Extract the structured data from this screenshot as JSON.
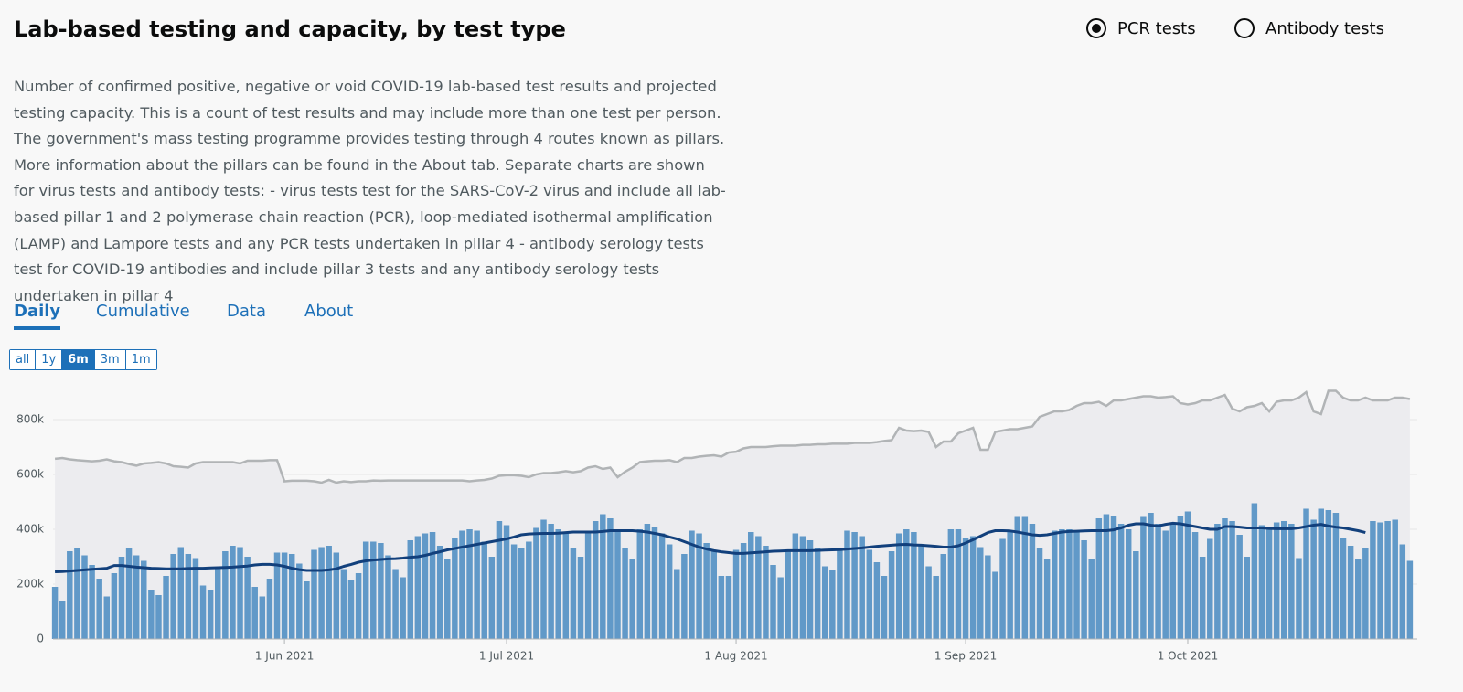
{
  "header": {
    "title": "Lab-based testing and capacity, by test type"
  },
  "toggles": [
    {
      "label": "PCR tests",
      "selected": true
    },
    {
      "label": "Antibody tests",
      "selected": false
    }
  ],
  "description": "Number of confirmed positive, negative or void COVID-19 lab-based test results and projected testing capacity. This is a count of test results and may include more than one test per person. The government's mass testing programme provides testing through 4 routes known as pillars. More information about the pillars can be found in the About tab. Separate charts are shown for virus tests and antibody tests: - virus tests test for the SARS-CoV-2 virus and include all lab-based pillar 1 and 2 polymerase chain reaction (PCR), loop-mediated isothermal amplification (LAMP) and Lampore tests and any PCR tests undertaken in pillar 4 - antibody serology tests test for COVID-19 antibodies and include pillar 3 tests and any antibody serology tests undertaken in pillar 4",
  "tabs": [
    "Daily",
    "Cumulative",
    "Data",
    "About"
  ],
  "active_tab": 0,
  "ranges": [
    "all",
    "1y",
    "6m",
    "3m",
    "1m"
  ],
  "active_range": 2,
  "chart_data": {
    "type": "bar",
    "x": [
      "2021-05-01",
      "2021-05-02",
      "2021-05-03",
      "2021-05-04",
      "2021-05-05",
      "2021-05-06",
      "2021-05-07",
      "2021-05-08",
      "2021-05-09",
      "2021-05-10",
      "2021-05-11",
      "2021-05-12",
      "2021-05-13",
      "2021-05-14",
      "2021-05-15",
      "2021-05-16",
      "2021-05-17",
      "2021-05-18",
      "2021-05-19",
      "2021-05-20",
      "2021-05-21",
      "2021-05-22",
      "2021-05-23",
      "2021-05-24",
      "2021-05-25",
      "2021-05-26",
      "2021-05-27",
      "2021-05-28",
      "2021-05-29",
      "2021-05-30",
      "2021-05-31",
      "2021-06-01",
      "2021-06-02",
      "2021-06-03",
      "2021-06-04",
      "2021-06-05",
      "2021-06-06",
      "2021-06-07",
      "2021-06-08",
      "2021-06-09",
      "2021-06-10",
      "2021-06-11",
      "2021-06-12",
      "2021-06-13",
      "2021-06-14",
      "2021-06-15",
      "2021-06-16",
      "2021-06-17",
      "2021-06-18",
      "2021-06-19",
      "2021-06-20",
      "2021-06-21",
      "2021-06-22",
      "2021-06-23",
      "2021-06-24",
      "2021-06-25",
      "2021-06-26",
      "2021-06-27",
      "2021-06-28",
      "2021-06-29",
      "2021-06-30",
      "2021-07-01",
      "2021-07-02",
      "2021-07-03",
      "2021-07-04",
      "2021-07-05",
      "2021-07-06",
      "2021-07-07",
      "2021-07-08",
      "2021-07-09",
      "2021-07-10",
      "2021-07-11",
      "2021-07-12",
      "2021-07-13",
      "2021-07-14",
      "2021-07-15",
      "2021-07-16",
      "2021-07-17",
      "2021-07-18",
      "2021-07-19",
      "2021-07-20",
      "2021-07-21",
      "2021-07-22",
      "2021-07-23",
      "2021-07-24",
      "2021-07-25",
      "2021-07-26",
      "2021-07-27",
      "2021-07-28",
      "2021-07-29",
      "2021-07-30",
      "2021-07-31",
      "2021-08-01",
      "2021-08-02",
      "2021-08-03",
      "2021-08-04",
      "2021-08-05",
      "2021-08-06",
      "2021-08-07",
      "2021-08-08",
      "2021-08-09",
      "2021-08-10",
      "2021-08-11",
      "2021-08-12",
      "2021-08-13",
      "2021-08-14",
      "2021-08-15",
      "2021-08-16",
      "2021-08-17",
      "2021-08-18",
      "2021-08-19",
      "2021-08-20",
      "2021-08-21",
      "2021-08-22",
      "2021-08-23",
      "2021-08-24",
      "2021-08-25",
      "2021-08-26",
      "2021-08-27",
      "2021-08-28",
      "2021-08-29",
      "2021-08-30",
      "2021-08-31",
      "2021-09-01",
      "2021-09-02",
      "2021-09-03",
      "2021-09-04",
      "2021-09-05",
      "2021-09-06",
      "2021-09-07",
      "2021-09-08",
      "2021-09-09",
      "2021-09-10",
      "2021-09-11",
      "2021-09-12",
      "2021-09-13",
      "2021-09-14",
      "2021-09-15",
      "2021-09-16",
      "2021-09-17",
      "2021-09-18",
      "2021-09-19",
      "2021-09-20",
      "2021-09-21",
      "2021-09-22",
      "2021-09-23",
      "2021-09-24",
      "2021-09-25",
      "2021-09-26",
      "2021-09-27",
      "2021-09-28",
      "2021-09-29",
      "2021-09-30",
      "2021-10-01",
      "2021-10-02",
      "2021-10-03",
      "2021-10-04",
      "2021-10-05",
      "2021-10-06",
      "2021-10-07",
      "2021-10-08",
      "2021-10-09",
      "2021-10-10",
      "2021-10-11",
      "2021-10-12",
      "2021-10-13",
      "2021-10-14",
      "2021-10-15",
      "2021-10-16",
      "2021-10-17",
      "2021-10-18",
      "2021-10-19",
      "2021-10-20",
      "2021-10-21",
      "2021-10-22",
      "2021-10-23",
      "2021-10-24",
      "2021-10-25",
      "2021-10-26",
      "2021-10-27",
      "2021-10-28",
      "2021-10-29",
      "2021-10-30",
      "2021-10-31"
    ],
    "series": [
      {
        "type": "area",
        "color": "#b1b4b6",
        "fill": "#ececef",
        "values": [
          657000,
          660000,
          655000,
          652000,
          650000,
          648000,
          650000,
          655000,
          648000,
          645000,
          638000,
          632000,
          640000,
          642000,
          645000,
          640000,
          630000,
          628000,
          625000,
          640000,
          645000,
          645000,
          645000,
          645000,
          645000,
          640000,
          650000,
          650000,
          650000,
          652000,
          652000,
          575000,
          577000,
          577000,
          577000,
          575000,
          570000,
          580000,
          570000,
          575000,
          572000,
          575000,
          575000,
          578000,
          577000,
          578000,
          578000,
          578000,
          578000,
          578000,
          578000,
          578000,
          578000,
          578000,
          578000,
          578000,
          575000,
          578000,
          580000,
          585000,
          595000,
          597000,
          597000,
          595000,
          590000,
          600000,
          605000,
          605000,
          608000,
          612000,
          608000,
          612000,
          625000,
          630000,
          620000,
          625000,
          590000,
          610000,
          625000,
          645000,
          648000,
          650000,
          650000,
          652000,
          645000,
          660000,
          660000,
          665000,
          668000,
          670000,
          665000,
          680000,
          683000,
          695000,
          700000,
          700000,
          700000,
          703000,
          705000,
          705000,
          705000,
          708000,
          708000,
          710000,
          710000,
          712000,
          712000,
          712000,
          715000,
          715000,
          715000,
          718000,
          722000,
          725000,
          770000,
          760000,
          758000,
          760000,
          755000,
          700000,
          720000,
          720000,
          750000,
          760000,
          770000,
          690000,
          690000,
          755000,
          760000,
          765000,
          765000,
          770000,
          775000,
          810000,
          820000,
          830000,
          830000,
          835000,
          850000,
          860000,
          860000,
          865000,
          850000,
          870000,
          870000,
          875000,
          880000,
          885000,
          885000,
          880000,
          882000,
          885000,
          860000,
          855000,
          860000,
          870000,
          870000,
          880000,
          890000,
          840000,
          830000,
          845000,
          850000,
          860000,
          830000,
          865000,
          870000,
          870000,
          880000,
          900000,
          830000,
          820000,
          905000,
          905000,
          880000,
          870000,
          870000,
          880000,
          870000,
          870000,
          870000,
          880000,
          880000,
          875000
        ]
      },
      {
        "type": "bar",
        "color": "#6199c8",
        "values": [
          190000,
          140000,
          320000,
          330000,
          305000,
          270000,
          220000,
          155000,
          240000,
          300000,
          330000,
          305000,
          285000,
          180000,
          160000,
          230000,
          310000,
          335000,
          310000,
          295000,
          195000,
          180000,
          260000,
          320000,
          340000,
          335000,
          300000,
          190000,
          155000,
          220000,
          315000,
          315000,
          310000,
          275000,
          210000,
          325000,
          335000,
          340000,
          315000,
          255000,
          215000,
          240000,
          355000,
          355000,
          350000,
          305000,
          255000,
          225000,
          360000,
          375000,
          385000,
          390000,
          340000,
          290000,
          370000,
          395000,
          400000,
          395000,
          355000,
          300000,
          430000,
          415000,
          345000,
          330000,
          355000,
          405000,
          435000,
          420000,
          400000,
          385000,
          330000,
          300000,
          395000,
          430000,
          455000,
          440000,
          395000,
          330000,
          290000,
          400000,
          420000,
          410000,
          385000,
          345000,
          255000,
          310000,
          395000,
          385000,
          350000,
          320000,
          230000,
          230000,
          325000,
          350000,
          390000,
          375000,
          340000,
          270000,
          225000,
          325000,
          385000,
          375000,
          360000,
          330000,
          265000,
          250000,
          325000,
          395000,
          390000,
          375000,
          325000,
          280000,
          230000,
          320000,
          385000,
          400000,
          390000,
          345000,
          265000,
          230000,
          310000,
          400000,
          400000,
          370000,
          375000,
          335000,
          305000,
          245000,
          365000,
          395000,
          445000,
          445000,
          420000,
          330000,
          290000,
          395000,
          400000,
          400000,
          395000,
          360000,
          290000,
          440000,
          455000,
          450000,
          420000,
          400000,
          320000,
          445000,
          460000,
          420000,
          395000,
          420000,
          450000,
          465000,
          390000,
          300000,
          365000,
          420000,
          440000,
          430000,
          380000,
          300000,
          495000,
          415000,
          400000,
          425000,
          430000,
          420000,
          295000,
          475000,
          435000,
          475000,
          470000,
          460000,
          370000,
          340000,
          290000,
          330000,
          430000,
          425000,
          430000,
          435000,
          345000,
          285000
        ]
      },
      {
        "type": "line",
        "color": "#12407c",
        "values": [
          245000,
          246000,
          248000,
          250000,
          252000,
          254000,
          256000,
          258000,
          268000,
          268000,
          265000,
          262000,
          260000,
          258000,
          257000,
          256000,
          256000,
          256000,
          257000,
          258000,
          258000,
          259000,
          260000,
          261000,
          262000,
          264000,
          266000,
          270000,
          272000,
          272000,
          270000,
          265000,
          258000,
          253000,
          250000,
          250000,
          250000,
          252000,
          256000,
          265000,
          272000,
          280000,
          285000,
          288000,
          290000,
          292000,
          293000,
          295000,
          298000,
          300000,
          305000,
          312000,
          318000,
          325000,
          330000,
          335000,
          340000,
          345000,
          350000,
          355000,
          360000,
          365000,
          372000,
          380000,
          383000,
          384000,
          385000,
          385000,
          386000,
          388000,
          390000,
          390000,
          390000,
          390000,
          392000,
          395000,
          395000,
          395000,
          395000,
          393000,
          390000,
          385000,
          380000,
          372000,
          365000,
          355000,
          345000,
          335000,
          328000,
          322000,
          318000,
          315000,
          312000,
          312000,
          314000,
          316000,
          318000,
          320000,
          321000,
          322000,
          322000,
          322000,
          322000,
          323000,
          324000,
          325000,
          326000,
          328000,
          330000,
          332000,
          335000,
          338000,
          340000,
          342000,
          344000,
          345000,
          343000,
          342000,
          340000,
          338000,
          335000,
          335000,
          340000,
          350000,
          362000,
          375000,
          388000,
          395000,
          395000,
          394000,
          390000,
          385000,
          380000,
          378000,
          380000,
          385000,
          390000,
          392000,
          393000,
          394000,
          395000,
          395000,
          395000,
          398000,
          405000,
          415000,
          420000,
          420000,
          415000,
          412000,
          418000,
          422000,
          420000,
          415000,
          410000,
          405000,
          400000,
          400000,
          410000,
          410000,
          408000,
          405000,
          405000,
          405000,
          403000,
          402000,
          402000,
          402000,
          405000,
          410000,
          415000,
          418000,
          412000,
          408000,
          405000,
          400000,
          395000,
          388000,
          null,
          null,
          null,
          null,
          null,
          null
        ]
      }
    ],
    "xlim": [
      "2021-04-30",
      "2021-11-01"
    ],
    "xticks": [
      {
        "value": "2021-06-01",
        "label": "1 Jun 2021"
      },
      {
        "value": "2021-07-01",
        "label": "1 Jul 2021"
      },
      {
        "value": "2021-08-01",
        "label": "1 Aug 2021"
      },
      {
        "value": "2021-09-01",
        "label": "1 Sep 2021"
      },
      {
        "value": "2021-10-01",
        "label": "1 Oct 2021"
      }
    ],
    "ylim": [
      0,
      910000
    ],
    "yticks": [
      0,
      {
        "value": 200000,
        "label": "200k"
      },
      {
        "value": 400000,
        "label": "400k"
      },
      {
        "value": 600000,
        "label": "600k"
      },
      {
        "value": 800000,
        "label": "800k"
      }
    ],
    "grid": true
  }
}
